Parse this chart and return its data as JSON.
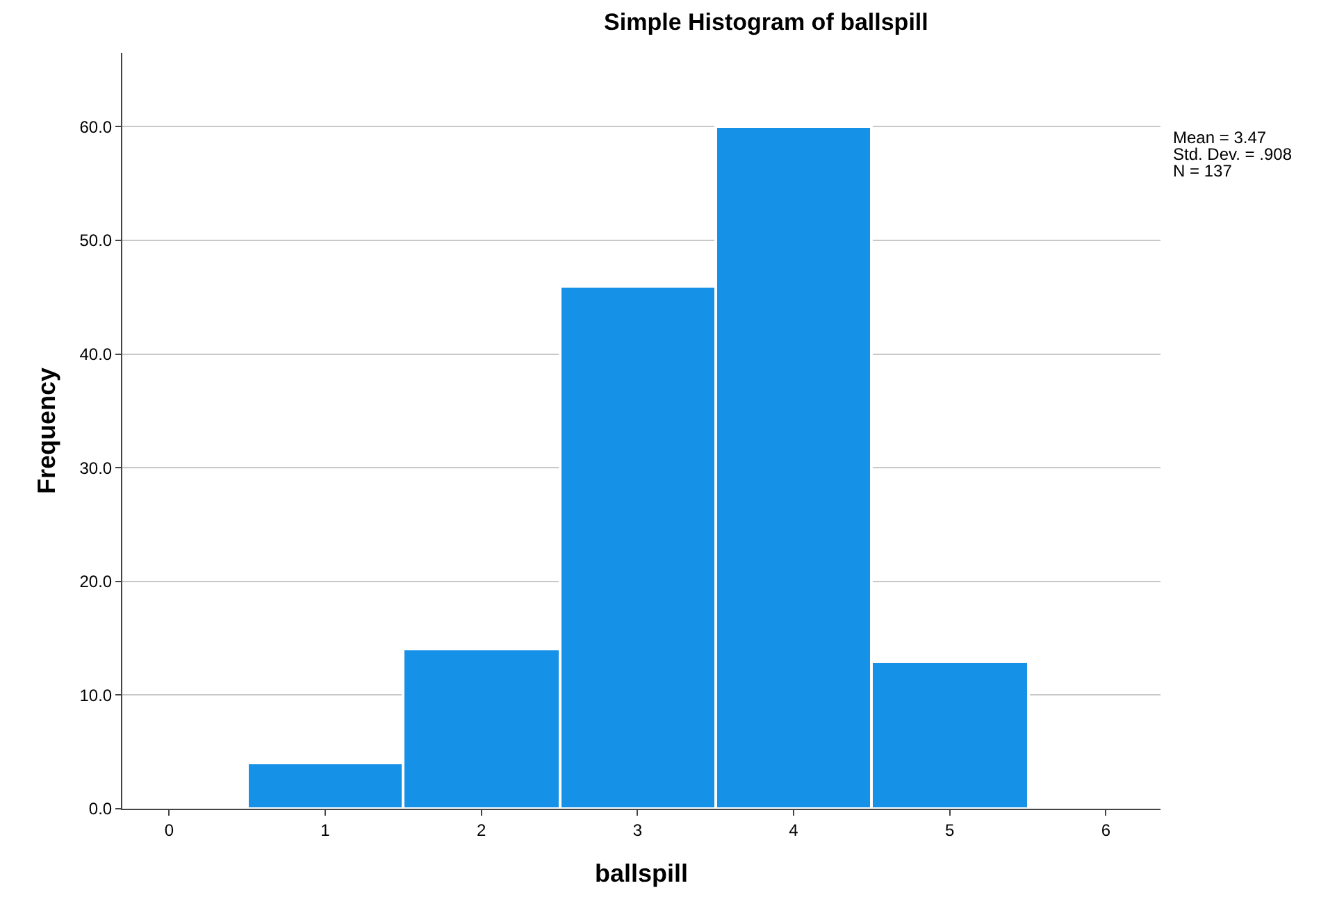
{
  "chart_data": {
    "type": "histogram",
    "title": "Simple Histogram of ballspill",
    "xlabel": "ballspill",
    "ylabel": "Frequency",
    "bins": [
      0.5,
      1.5,
      2.5,
      3.5,
      4.5,
      5.5
    ],
    "values": [
      4,
      14,
      46,
      60,
      13
    ],
    "color": "#1591e8",
    "xlim": [
      -0.3,
      6.35
    ],
    "xticks": [
      0,
      1,
      2,
      3,
      4,
      5,
      6
    ],
    "ylim": [
      0,
      66.5
    ],
    "yticks": [
      {
        "value": 0,
        "label": "0.0"
      },
      {
        "value": 10,
        "label": "10.0"
      },
      {
        "value": 20,
        "label": "20.0"
      },
      {
        "value": 30,
        "label": "30.0"
      },
      {
        "value": 40,
        "label": "40.0"
      },
      {
        "value": 50,
        "label": "50.0"
      },
      {
        "value": 60,
        "label": "60.0"
      }
    ],
    "grid": "y",
    "annotations": [
      "Mean = 3.47",
      "Std. Dev. = .908",
      "N = 137"
    ]
  }
}
